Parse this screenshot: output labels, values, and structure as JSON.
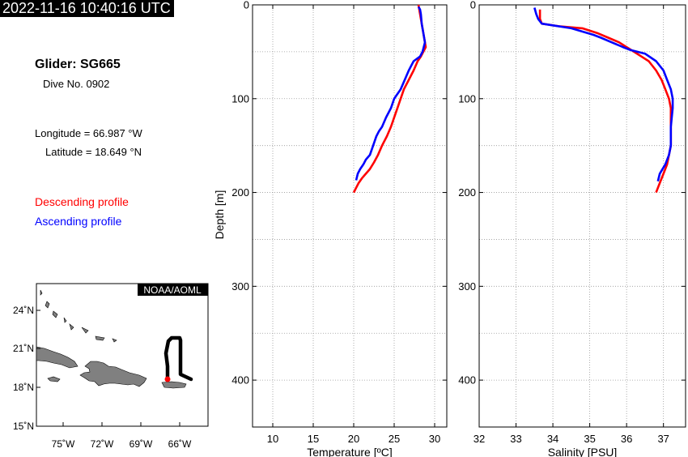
{
  "header": {
    "timestamp": "2022-11-16 10:40:16 UTC",
    "glider_title": "Glider: SG665",
    "dive_label": "Dive No. 0902",
    "longitude_label": "Longitude = 66.987 °W",
    "latitude_label": "Latitude = 18.649 °N"
  },
  "legend": {
    "descending": "Descending profile",
    "ascending": "Ascending profile",
    "descending_color": "#ff0000",
    "ascending_color": "#0000ff"
  },
  "map": {
    "credit": "NOAA/AOML",
    "lat_ticks": [
      "24˚N",
      "21˚N",
      "18˚N",
      "15˚N"
    ],
    "lon_ticks": [
      "75˚W",
      "72˚W",
      "69˚W",
      "66˚W"
    ],
    "land_color": "#808080",
    "track_color": "#000000",
    "position_color": "#ff0000"
  },
  "chart_data": [
    {
      "type": "line",
      "xlabel": "Temperature [ºC]",
      "ylabel": "Depth [m]",
      "xlim": [
        7.5,
        31.5
      ],
      "ylim": [
        450,
        0
      ],
      "x_ticks": [
        "10",
        "15",
        "20",
        "25",
        "30"
      ],
      "y_ticks": [
        "0",
        "100",
        "200",
        "300",
        "400"
      ],
      "grid": true,
      "series": [
        {
          "name": "Descending profile",
          "x": [
            28.0,
            28.1,
            28.3,
            28.5,
            28.7,
            28.9,
            28.6,
            28.3,
            27.9,
            27.4,
            26.8,
            26.2,
            25.8,
            25.4,
            25.0,
            24.6,
            24.1,
            23.5,
            23.0,
            22.5,
            22.0,
            21.5,
            21.0,
            20.6,
            20.3,
            20.0
          ],
          "y": [
            0,
            5,
            15,
            25,
            35,
            45,
            50,
            55,
            60,
            70,
            80,
            90,
            100,
            110,
            120,
            130,
            140,
            150,
            160,
            168,
            175,
            180,
            185,
            190,
            195,
            200
          ]
        },
        {
          "name": "Ascending profile",
          "x": [
            20.3,
            20.5,
            20.8,
            21.2,
            21.5,
            22.0,
            22.4,
            22.8,
            23.1,
            23.5,
            24.0,
            24.6,
            25.0,
            25.4,
            25.8,
            26.3,
            26.8,
            27.4,
            28.2,
            28.5,
            28.8,
            28.6,
            28.4,
            28.3,
            28.2,
            28.0
          ],
          "y": [
            187,
            180,
            175,
            170,
            165,
            160,
            150,
            140,
            135,
            130,
            120,
            110,
            100,
            95,
            90,
            80,
            70,
            60,
            55,
            50,
            40,
            30,
            20,
            10,
            5,
            2
          ]
        }
      ]
    },
    {
      "type": "line",
      "xlabel": "Salinity [PSU]",
      "ylabel": "",
      "xlim": [
        32.0,
        37.6
      ],
      "ylim": [
        450,
        0
      ],
      "x_ticks": [
        "32",
        "33",
        "34",
        "35",
        "36",
        "37"
      ],
      "y_ticks": [
        "0",
        "100",
        "200",
        "300",
        "400"
      ],
      "grid": true,
      "series": [
        {
          "name": "Descending profile",
          "x": [
            33.65,
            33.65,
            33.65,
            33.7,
            34.2,
            34.8,
            35.2,
            35.5,
            35.8,
            36.0,
            36.2,
            36.4,
            36.6,
            36.8,
            36.95,
            37.05,
            37.15,
            37.2,
            37.2,
            37.2,
            37.2,
            37.2,
            37.15,
            37.1,
            37.0,
            36.9,
            36.85,
            36.8
          ],
          "y": [
            5,
            10,
            15,
            20,
            23,
            25,
            30,
            35,
            40,
            45,
            50,
            55,
            60,
            70,
            80,
            90,
            100,
            110,
            120,
            130,
            140,
            150,
            160,
            170,
            180,
            190,
            195,
            200
          ]
        },
        {
          "name": "Ascending profile",
          "x": [
            36.85,
            36.9,
            37.05,
            37.15,
            37.2,
            37.2,
            37.25,
            37.25,
            37.2,
            37.1,
            37.0,
            36.8,
            36.5,
            36.1,
            35.9,
            35.6,
            35.3,
            35.1,
            34.5,
            33.7,
            33.6,
            33.55,
            33.5
          ],
          "y": [
            188,
            180,
            170,
            160,
            150,
            130,
            110,
            100,
            90,
            80,
            70,
            60,
            52,
            48,
            45,
            40,
            35,
            32,
            25,
            20,
            15,
            10,
            3
          ]
        }
      ]
    }
  ]
}
